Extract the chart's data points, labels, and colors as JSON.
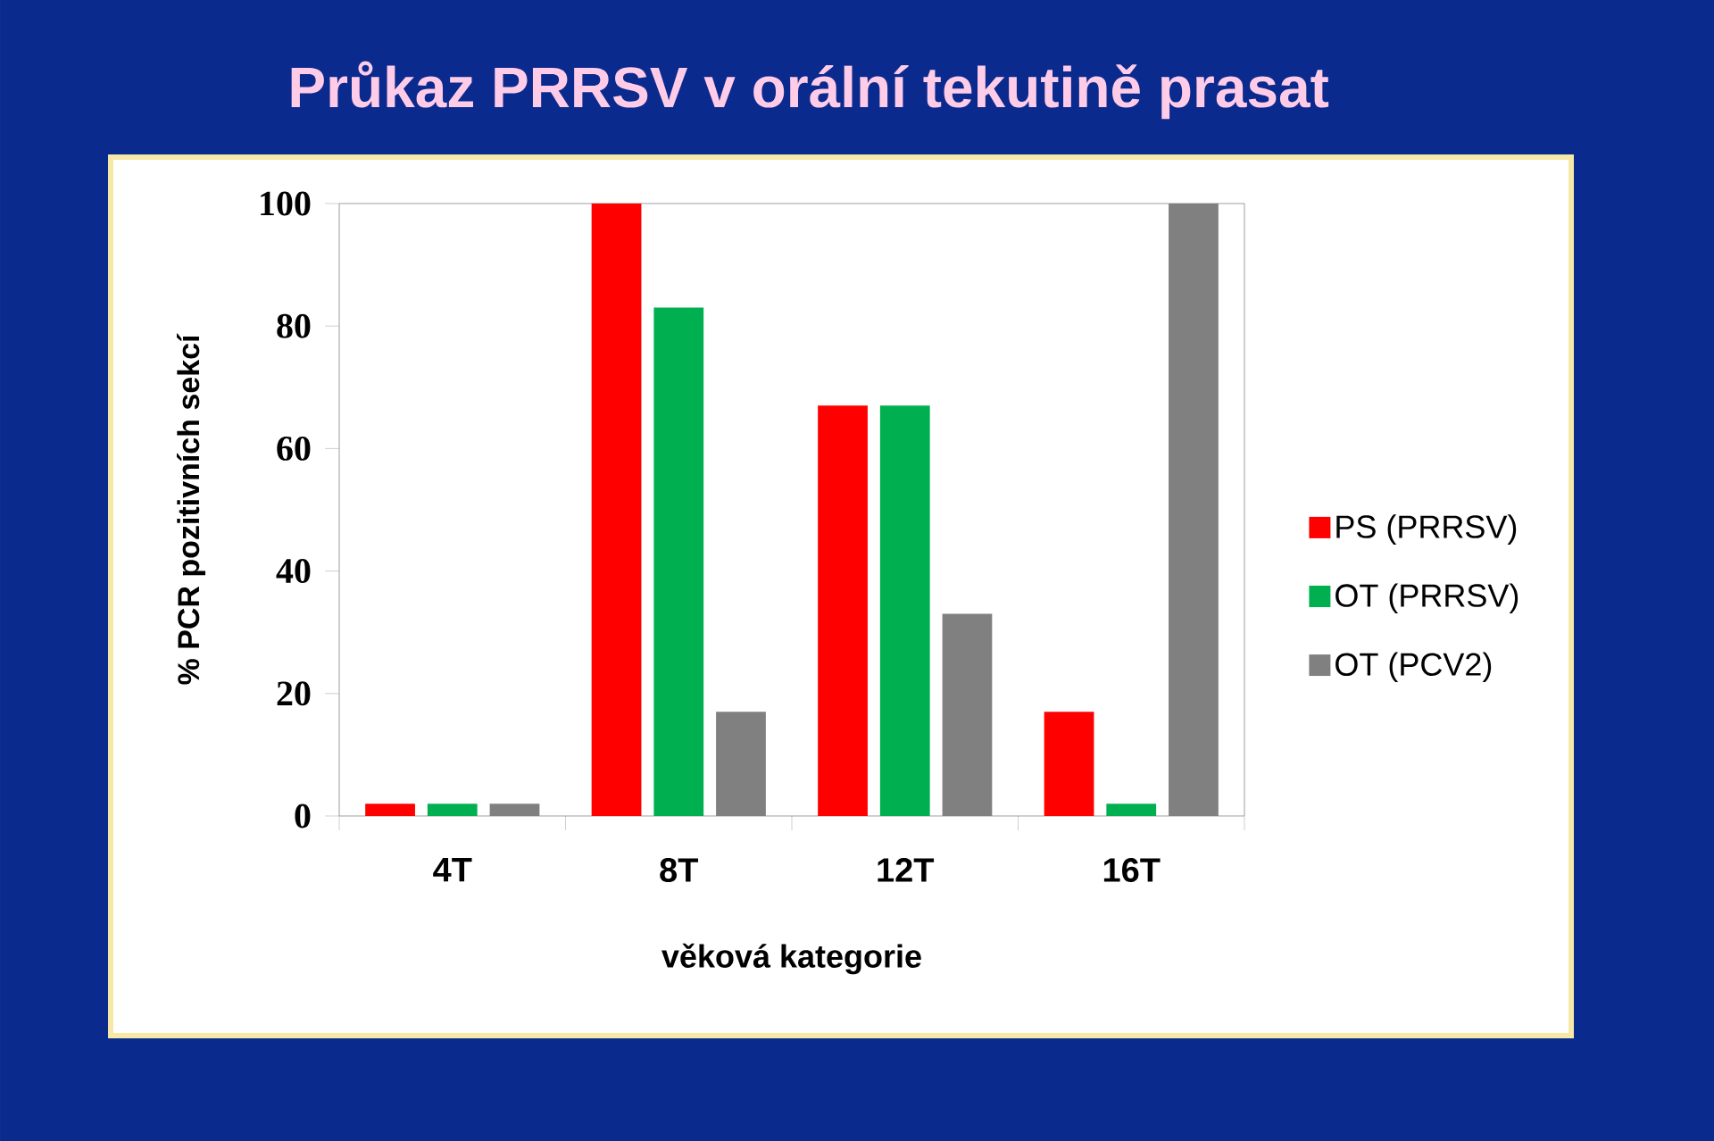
{
  "chart_data": {
    "type": "bar",
    "title": "Průkaz PRRSV v orální tekutině prasat",
    "xlabel": "věková kategorie",
    "ylabel": "% PCR pozitivních sekcí",
    "categories": [
      "4T",
      "8T",
      "12T",
      "16T"
    ],
    "series": [
      {
        "name": "PS (PRRSV)",
        "color": "#ff0000",
        "values": [
          2,
          100,
          67,
          17
        ]
      },
      {
        "name": "OT (PRRSV)",
        "color": "#00b050",
        "values": [
          2,
          83,
          67,
          2
        ]
      },
      {
        "name": "OT (PCV2)",
        "color": "#808080",
        "values": [
          2,
          17,
          33,
          100
        ]
      }
    ],
    "ylim": [
      0,
      100
    ],
    "yticks": [
      0,
      20,
      40,
      60,
      80,
      100
    ],
    "legend": "right"
  }
}
